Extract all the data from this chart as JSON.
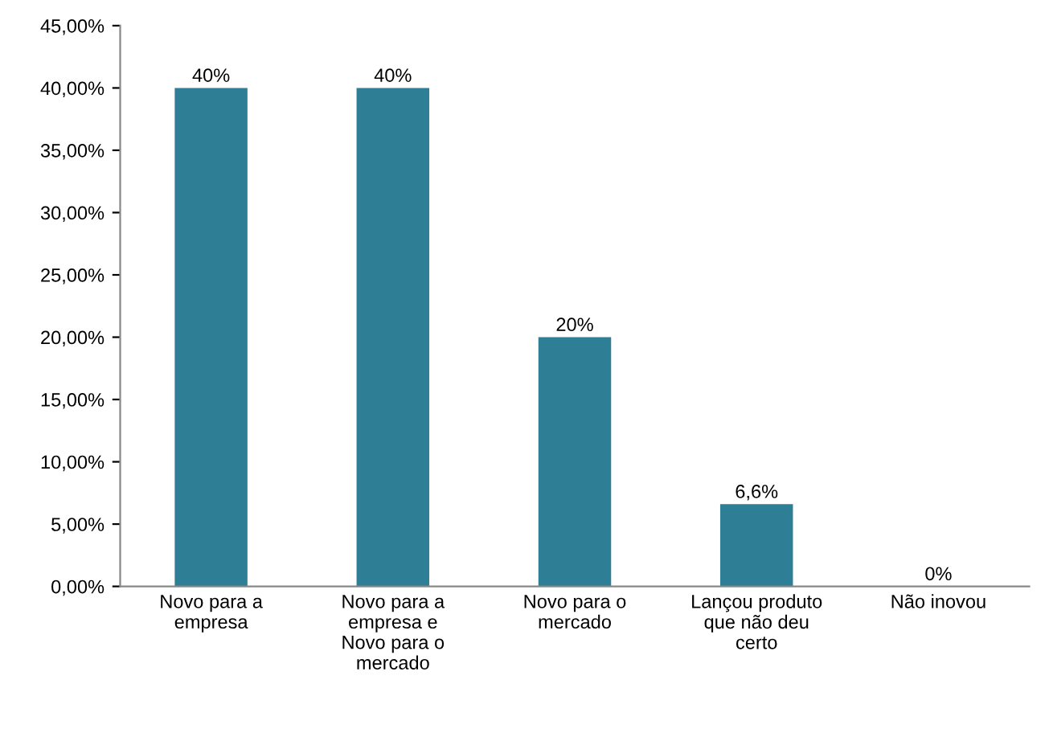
{
  "chart_data": {
    "type": "bar",
    "categories": [
      "Novo para a\nempresa",
      "Novo para a\nempresa e\nNovo para o\nmercado",
      "Novo para o\nmercado",
      "Lançou produto\nque não deu\ncerto",
      "Não inovou"
    ],
    "values": [
      40,
      40,
      20,
      6.6,
      0
    ],
    "color": "#2e7f96",
    "value_labels": [
      "40%",
      "40%",
      "20%",
      "6,6%",
      "0%"
    ],
    "ylim": [
      0,
      45
    ],
    "yticks": [
      {
        "value": 0,
        "label": "0,00%"
      },
      {
        "value": 5,
        "label": "5,00%"
      },
      {
        "value": 10,
        "label": "10,00%"
      },
      {
        "value": 15,
        "label": "15,00%"
      },
      {
        "value": 20,
        "label": "20,00%"
      },
      {
        "value": 25,
        "label": "25,00%"
      },
      {
        "value": 30,
        "label": "30,00%"
      },
      {
        "value": 35,
        "label": "35,00%"
      },
      {
        "value": 40,
        "label": "40,00%"
      },
      {
        "value": 45,
        "label": "45,00%"
      }
    ],
    "grid": false,
    "legend": false
  }
}
